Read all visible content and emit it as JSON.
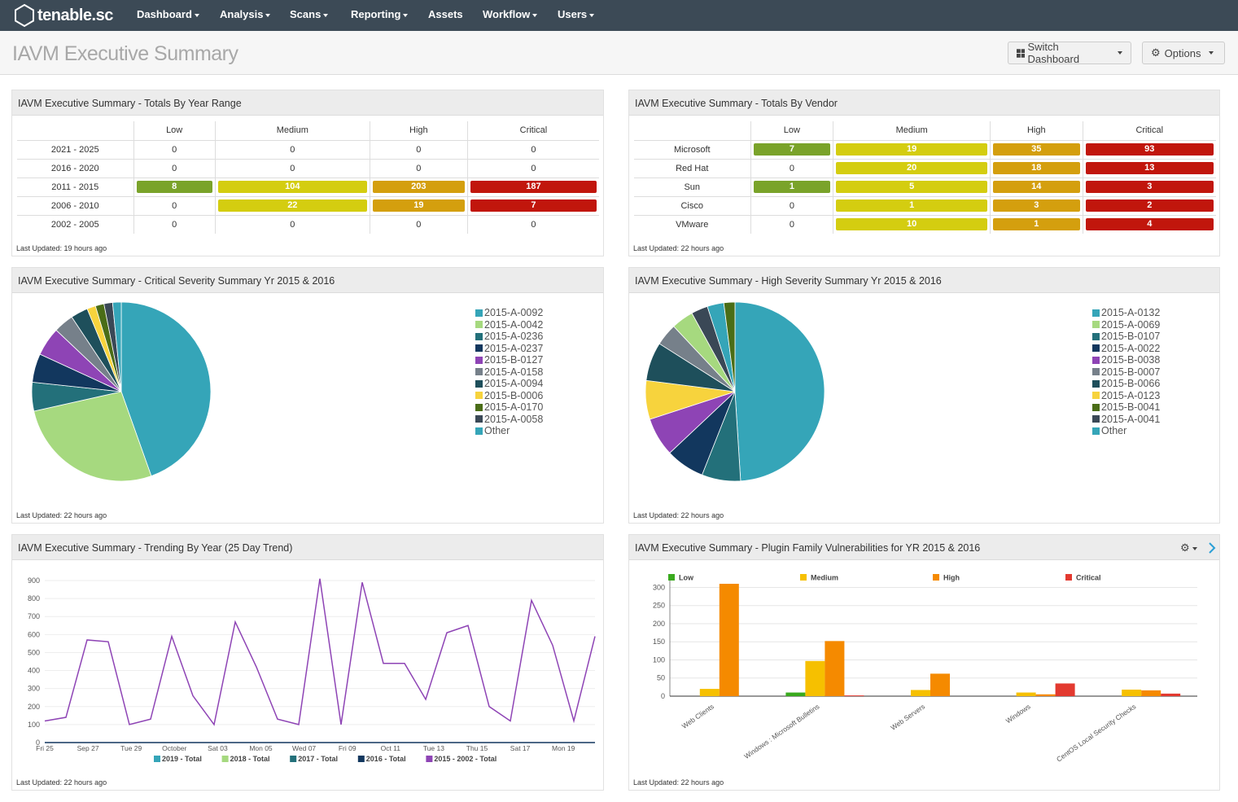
{
  "app": {
    "logo_text": "tenable.sc",
    "nav": [
      {
        "label": "Dashboard",
        "dropdown": true
      },
      {
        "label": "Analysis",
        "dropdown": true
      },
      {
        "label": "Scans",
        "dropdown": true
      },
      {
        "label": "Reporting",
        "dropdown": true
      },
      {
        "label": "Assets",
        "dropdown": false
      },
      {
        "label": "Workflow",
        "dropdown": true
      },
      {
        "label": "Users",
        "dropdown": true
      }
    ]
  },
  "page": {
    "title": "IAVM Executive Summary",
    "switch_dashboard_label": "Switch Dashboard",
    "options_label": "Options"
  },
  "colors": {
    "low": "#7aa32a",
    "medium": "#d4cd10",
    "high": "#d49f0e",
    "critical": "#c1160c"
  },
  "year_range": {
    "title": "IAVM Executive Summary - Totals By Year Range",
    "columns": [
      "Low",
      "Medium",
      "High",
      "Critical"
    ],
    "rows": [
      {
        "label": "2021 - 2025",
        "values": [
          "0",
          "0",
          "0",
          "0"
        ]
      },
      {
        "label": "2016 - 2020",
        "values": [
          "0",
          "0",
          "0",
          "0"
        ]
      },
      {
        "label": "2011 - 2015",
        "values": [
          "8",
          "104",
          "203",
          "187"
        ]
      },
      {
        "label": "2006 - 2010",
        "values": [
          "0",
          "22",
          "19",
          "7"
        ]
      },
      {
        "label": "2002 - 2005",
        "values": [
          "0",
          "0",
          "0",
          "0"
        ]
      }
    ],
    "last_updated": "Last Updated: 19 hours ago"
  },
  "vendor": {
    "title": "IAVM Executive Summary - Totals By Vendor",
    "columns": [
      "Low",
      "Medium",
      "High",
      "Critical"
    ],
    "rows": [
      {
        "label": "Microsoft",
        "values": [
          "7",
          "19",
          "35",
          "93"
        ]
      },
      {
        "label": "Red Hat",
        "values": [
          "0",
          "20",
          "18",
          "13"
        ]
      },
      {
        "label": "Sun",
        "values": [
          "1",
          "5",
          "14",
          "3"
        ]
      },
      {
        "label": "Cisco",
        "values": [
          "0",
          "1",
          "3",
          "2"
        ]
      },
      {
        "label": "VMware",
        "values": [
          "0",
          "10",
          "1",
          "4"
        ]
      }
    ],
    "last_updated": "Last Updated: 22 hours ago"
  },
  "critical_pie": {
    "title": "IAVM Executive Summary - Critical Severity Summary Yr 2015 & 2016",
    "last_updated": "Last Updated: 22 hours ago"
  },
  "high_pie": {
    "title": "IAVM Executive Summary - High Severity Summary Yr 2015 & 2016",
    "last_updated": "Last Updated: 22 hours ago"
  },
  "trend": {
    "title": "IAVM Executive Summary - Trending By Year (25 Day Trend)",
    "last_updated": "Last Updated: 22 hours ago"
  },
  "plugin": {
    "title": "IAVM Executive Summary - Plugin Family Vulnerabilities for YR 2015 & 2016",
    "last_updated": "Last Updated: 22 hours ago"
  },
  "chart_data": [
    {
      "type": "pie",
      "slices": [
        {
          "label": "2015-A-0092",
          "value": 43,
          "color": "#35a5b8"
        },
        {
          "label": "2015-A-0042",
          "value": 26,
          "color": "#a6d97f"
        },
        {
          "label": "2015-A-0236",
          "value": 5,
          "color": "#23707a"
        },
        {
          "label": "2015-A-0237",
          "value": 5,
          "color": "#12375e"
        },
        {
          "label": "2015-B-0127",
          "value": 5,
          "color": "#8e44b5"
        },
        {
          "label": "2015-A-0158",
          "value": 3.5,
          "color": "#76808a"
        },
        {
          "label": "2015-A-0094",
          "value": 3,
          "color": "#1e4f5b"
        },
        {
          "label": "2015-B-0006",
          "value": 1.5,
          "color": "#f7d33d"
        },
        {
          "label": "2015-A-0170",
          "value": 1.5,
          "color": "#4a6d17"
        },
        {
          "label": "2015-A-0058",
          "value": 1.5,
          "color": "#3a4856"
        },
        {
          "label": "Other",
          "value": 1.5,
          "color": "#35a5b8"
        }
      ]
    },
    {
      "type": "pie",
      "slices": [
        {
          "label": "2015-A-0132",
          "value": 49,
          "color": "#35a5b8"
        },
        {
          "label": "2015-A-0069",
          "value": 7,
          "color": "#23707a"
        },
        {
          "label": "2015-B-0107",
          "value": 7,
          "color": "#12375e"
        },
        {
          "label": "2015-A-0022",
          "value": 7,
          "color": "#8e44b5"
        },
        {
          "label": "2015-B-0038",
          "value": 7,
          "color": "#f7d33d"
        },
        {
          "label": "2015-B-0007",
          "value": 7,
          "color": "#1e4f5b"
        },
        {
          "label": "2015-B-0066",
          "value": 4,
          "color": "#76808a"
        },
        {
          "label": "2015-A-0123",
          "value": 4,
          "color": "#a6d97f"
        },
        {
          "label": "2015-B-0041",
          "value": 3,
          "color": "#3a4856"
        },
        {
          "label": "2015-A-0041",
          "value": 3,
          "color": "#35a5b8"
        },
        {
          "label": "Other",
          "value": 2,
          "color": "#4a6d17"
        }
      ],
      "legend_colors": [
        "#35a5b8",
        "#a6d97f",
        "#23707a",
        "#12375e",
        "#8e44b5",
        "#76808a",
        "#1e4f5b",
        "#f7d33d",
        "#4a6d17",
        "#3a4856",
        "#35a5b8"
      ]
    },
    {
      "type": "line",
      "x_ticks": [
        "Fri 25",
        "Sep 27",
        "Tue 29",
        "October",
        "Sat 03",
        "Mon 05",
        "Wed 07",
        "Fri 09",
        "Oct 11",
        "Tue 13",
        "Thu 15",
        "Sat 17",
        "Mon 19"
      ],
      "y_ticks": [
        "0",
        "100",
        "200",
        "300",
        "400",
        "500",
        "600",
        "700",
        "800",
        "900"
      ],
      "ylim": [
        0,
        900
      ],
      "series": [
        {
          "name": "2015 - 2002 - Total",
          "color": "#8e44b5",
          "values": [
            120,
            140,
            570,
            560,
            100,
            130,
            590,
            260,
            100,
            670,
            420,
            130,
            100,
            910,
            100,
            890,
            440,
            440,
            240,
            610,
            650,
            200,
            120,
            790,
            540,
            120,
            590
          ]
        }
      ],
      "legend": [
        {
          "name": "2019 - Total",
          "color": "#35a5b8"
        },
        {
          "name": "2018 - Total",
          "color": "#a6d97f"
        },
        {
          "name": "2017 - Total",
          "color": "#23707a"
        },
        {
          "name": "2016 - Total",
          "color": "#12375e"
        },
        {
          "name": "2015 - 2002 - Total",
          "color": "#8e44b5"
        }
      ]
    },
    {
      "type": "bar",
      "categories": [
        "Web Clients",
        "Windows : Microsoft Bulletins",
        "Web Servers",
        "Windows",
        "CentOS Local Security Checks"
      ],
      "y_ticks": [
        "0",
        "50",
        "100",
        "150",
        "200",
        "250",
        "300"
      ],
      "ylim": [
        0,
        310
      ],
      "series": [
        {
          "name": "Low",
          "color": "#3aaa1e",
          "values": [
            0,
            10,
            0,
            0,
            0
          ]
        },
        {
          "name": "Medium",
          "color": "#f6c000",
          "values": [
            20,
            97,
            17,
            10,
            18
          ]
        },
        {
          "name": "High",
          "color": "#f58a00",
          "values": [
            310,
            152,
            62,
            5,
            16
          ]
        },
        {
          "name": "Critical",
          "color": "#e33a30",
          "values": [
            0,
            2,
            0,
            35,
            7
          ]
        }
      ]
    }
  ]
}
